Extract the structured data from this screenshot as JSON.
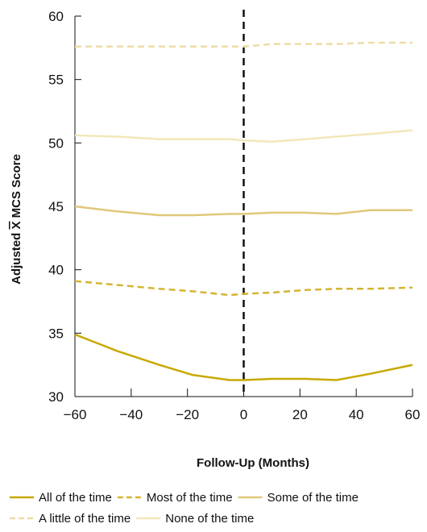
{
  "chart_data": {
    "type": "line",
    "title": "",
    "xlabel": "Follow-Up (Months)",
    "ylabel_parts": [
      "Adjusted ",
      "X",
      " MCS Score"
    ],
    "xlim": [
      -60,
      60
    ],
    "ylim": [
      30,
      60
    ],
    "xticks": [
      -60,
      -40,
      -20,
      0,
      20,
      40,
      60
    ],
    "xtick_labels": [
      "−60",
      "−40",
      "−20",
      "0",
      "20",
      "40",
      "60"
    ],
    "yticks": [
      30,
      35,
      40,
      45,
      50,
      55,
      60
    ],
    "ytick_labels": [
      "30",
      "35",
      "40",
      "45",
      "50",
      "55",
      "60"
    ],
    "grid": false,
    "reference_line": {
      "x": 0,
      "style": "dashed",
      "color": "#111111"
    },
    "legend_position": "bottom",
    "series": [
      {
        "name": "All of the time",
        "color": "#C9A800",
        "dash": "solid",
        "x": [
          -60,
          -45,
          -30,
          -18,
          -5,
          0,
          10,
          22,
          33,
          45,
          60
        ],
        "y": [
          34.9,
          33.6,
          32.5,
          31.7,
          31.3,
          31.3,
          31.4,
          31.4,
          31.3,
          31.8,
          32.5
        ]
      },
      {
        "name": "Most of the time",
        "color": "#D4B533",
        "dash": "dashed",
        "x": [
          -60,
          -45,
          -30,
          -18,
          -5,
          0,
          10,
          22,
          33,
          45,
          60
        ],
        "y": [
          39.1,
          38.8,
          38.5,
          38.3,
          38.0,
          38.1,
          38.2,
          38.4,
          38.5,
          38.5,
          38.6
        ]
      },
      {
        "name": "Some of the time",
        "color": "#E0C87A",
        "dash": "solid",
        "x": [
          -60,
          -45,
          -30,
          -18,
          -5,
          0,
          10,
          22,
          33,
          45,
          60
        ],
        "y": [
          45.0,
          44.6,
          44.3,
          44.3,
          44.4,
          44.4,
          44.5,
          44.5,
          44.4,
          44.7,
          44.7
        ]
      },
      {
        "name": "A little of the time",
        "color": "#EEDCA6",
        "dash": "dashed",
        "x": [
          -60,
          -45,
          -30,
          -18,
          -5,
          0,
          10,
          22,
          33,
          45,
          60
        ],
        "y": [
          57.6,
          57.6,
          57.6,
          57.6,
          57.6,
          57.6,
          57.8,
          57.8,
          57.8,
          57.9,
          57.9
        ]
      },
      {
        "name": "None of the time",
        "color": "#F2E8B8",
        "dash": "solid",
        "x": [
          -60,
          -45,
          -30,
          -18,
          -5,
          0,
          10,
          22,
          33,
          45,
          60
        ],
        "y": [
          50.6,
          50.5,
          50.3,
          50.3,
          50.3,
          50.2,
          50.1,
          50.3,
          50.5,
          50.7,
          51.0
        ]
      }
    ]
  }
}
